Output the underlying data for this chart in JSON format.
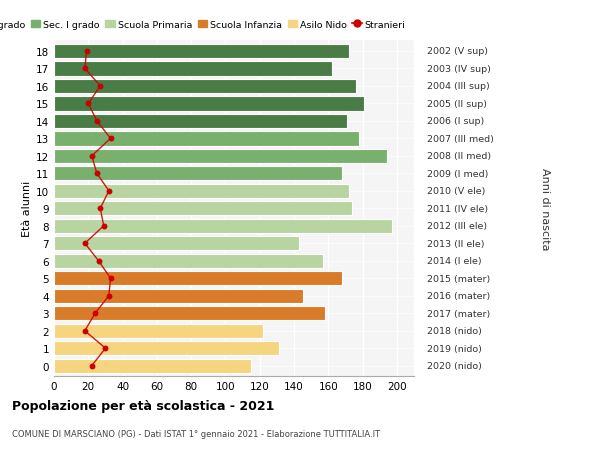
{
  "ages": [
    18,
    17,
    16,
    15,
    14,
    13,
    12,
    11,
    10,
    9,
    8,
    7,
    6,
    5,
    4,
    3,
    2,
    1,
    0
  ],
  "right_labels": [
    "2002 (V sup)",
    "2003 (IV sup)",
    "2004 (III sup)",
    "2005 (II sup)",
    "2006 (I sup)",
    "2007 (III med)",
    "2008 (II med)",
    "2009 (I med)",
    "2010 (V ele)",
    "2011 (IV ele)",
    "2012 (III ele)",
    "2013 (II ele)",
    "2014 (I ele)",
    "2015 (mater)",
    "2016 (mater)",
    "2017 (mater)",
    "2018 (nido)",
    "2019 (nido)",
    "2020 (nido)"
  ],
  "bar_values": [
    172,
    162,
    176,
    181,
    171,
    178,
    194,
    168,
    172,
    174,
    197,
    143,
    157,
    168,
    145,
    158,
    122,
    131,
    115
  ],
  "bar_colors": [
    "#4a7c45",
    "#4a7c45",
    "#4a7c45",
    "#4a7c45",
    "#4a7c45",
    "#7ab06e",
    "#7ab06e",
    "#7ab06e",
    "#b8d4a0",
    "#b8d4a0",
    "#b8d4a0",
    "#b8d4a0",
    "#b8d4a0",
    "#d97c2a",
    "#d97c2a",
    "#d97c2a",
    "#f5d580",
    "#f5d580",
    "#f5d580"
  ],
  "stranieri_values": [
    19,
    18,
    27,
    20,
    25,
    33,
    22,
    25,
    32,
    27,
    29,
    18,
    26,
    33,
    32,
    24,
    18,
    30,
    22
  ],
  "stranieri_color": "#cc0000",
  "xlim": [
    0,
    210
  ],
  "xticks": [
    0,
    20,
    40,
    60,
    80,
    100,
    120,
    140,
    160,
    180,
    200
  ],
  "ylabel": "Età alunni",
  "right_axis_label": "Anni di nascita",
  "title_bold": "Popolazione per età scolastica - 2021",
  "subtitle": "COMUNE DI MARSCIANO (PG) - Dati ISTAT 1° gennaio 2021 - Elaborazione TUTTITALIA.IT",
  "legend_items": [
    {
      "label": "Sec. II grado",
      "color": "#4a7c45"
    },
    {
      "label": "Sec. I grado",
      "color": "#7ab06e"
    },
    {
      "label": "Scuola Primaria",
      "color": "#b8d4a0"
    },
    {
      "label": "Scuola Infanzia",
      "color": "#d97c2a"
    },
    {
      "label": "Asilo Nido",
      "color": "#f5d580"
    },
    {
      "label": "Stranieri",
      "color": "#cc0000"
    }
  ],
  "background_color": "#ffffff",
  "grid_color": "#cccccc",
  "bar_height": 0.82,
  "ylim": [
    -0.6,
    18.6
  ]
}
